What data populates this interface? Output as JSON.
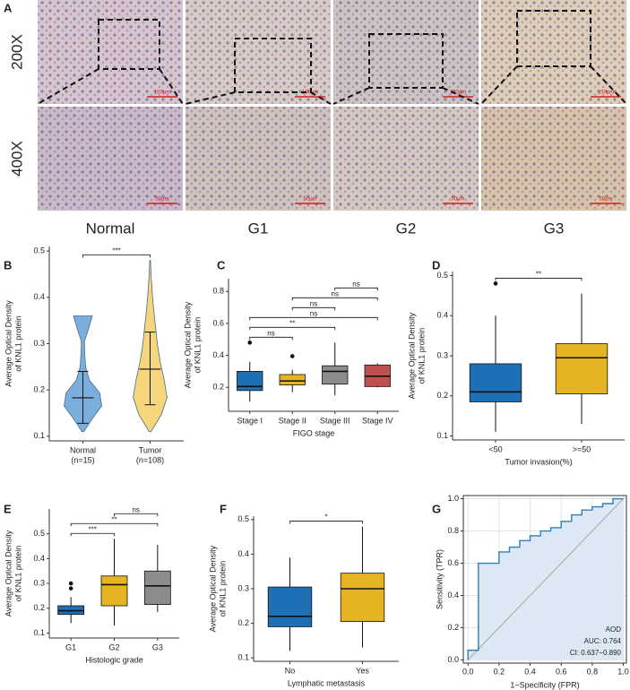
{
  "images": {
    "panel": "A",
    "magnifications": [
      "200X",
      "400X"
    ],
    "groups": [
      "Normal",
      "G1",
      "G2",
      "G3"
    ],
    "scale_bars": [
      "100μm",
      "50μm"
    ]
  },
  "chart_data": [
    {
      "type": "violin",
      "panel": "B",
      "ylabel": [
        "Average Optical Density",
        "of KNL1 protein"
      ],
      "categories": [
        "Normal",
        "Tumor"
      ],
      "category_counts": [
        "(n=15)",
        "(n=108)"
      ],
      "violins": [
        {
          "color": "#7aaedc",
          "min": 0.11,
          "max": 0.36,
          "density": [
            0.05,
            0.5,
            1,
            0.9,
            0.35,
            0.15,
            0.1,
            0.08,
            0.3,
            0.5
          ],
          "mean": 0.183,
          "sd_low": 0.128,
          "sd_high": 0.24
        },
        {
          "color": "#f5d67a",
          "min": 0.11,
          "max": 0.48,
          "density": [
            0.05,
            0.6,
            0.9,
            0.75,
            0.55,
            0.4,
            0.3,
            0.2,
            0.12,
            0.06,
            0.02
          ],
          "mean": 0.245,
          "sd_low": 0.168,
          "sd_high": 0.325
        }
      ],
      "comparisons": [
        {
          "pair": [
            0,
            1
          ],
          "label": "***"
        }
      ],
      "ylim": [
        0.09,
        0.51
      ],
      "yticks": [
        0.1,
        0.2,
        0.3,
        0.4,
        0.5
      ]
    },
    {
      "type": "box",
      "panel": "C",
      "ylabel": [
        "Average Optical Density",
        "of KNL1 protein"
      ],
      "xlabel": "FIGO stage",
      "categories": [
        "Stage I",
        "Stage II",
        "Stage III",
        "Stage IV"
      ],
      "boxes": [
        {
          "color": "#1f6fb5",
          "min": 0.11,
          "q1": 0.18,
          "median": 0.205,
          "q3": 0.3,
          "max": 0.36,
          "outliers": [
            0.48
          ]
        },
        {
          "color": "#e6b422",
          "min": 0.17,
          "q1": 0.215,
          "median": 0.24,
          "q3": 0.28,
          "max": 0.31,
          "outliers": [
            0.395
          ]
        },
        {
          "color": "#8c8c8c",
          "min": 0.15,
          "q1": 0.22,
          "median": 0.3,
          "q3": 0.335,
          "max": 0.48,
          "outliers": []
        },
        {
          "color": "#c0504d",
          "min": 0.2,
          "q1": 0.205,
          "median": 0.27,
          "q3": 0.34,
          "max": 0.35,
          "outliers": []
        }
      ],
      "comparisons": [
        {
          "pair": [
            0,
            1
          ],
          "label": "ns"
        },
        {
          "pair": [
            0,
            2
          ],
          "label": "**"
        },
        {
          "pair": [
            0,
            3
          ],
          "label": "ns"
        },
        {
          "pair": [
            1,
            2
          ],
          "label": "ns"
        },
        {
          "pair": [
            1,
            3
          ],
          "label": "ns"
        },
        {
          "pair": [
            2,
            3
          ],
          "label": "ns"
        }
      ],
      "ylim": [
        0.05,
        0.88
      ],
      "yticks": [
        0.2,
        0.4,
        0.6,
        0.8
      ]
    },
    {
      "type": "box",
      "panel": "D",
      "ylabel": [
        "Average Optical Density",
        "of KNL1 protein"
      ],
      "xlabel": "Tumor invasion(%)",
      "categories": [
        "<50",
        ">=50"
      ],
      "boxes": [
        {
          "color": "#1f6fb5",
          "min": 0.11,
          "q1": 0.185,
          "median": 0.21,
          "q3": 0.28,
          "max": 0.4,
          "outliers": [
            0.48
          ]
        },
        {
          "color": "#e6b422",
          "min": 0.13,
          "q1": 0.205,
          "median": 0.295,
          "q3": 0.33,
          "max": 0.455,
          "outliers": []
        }
      ],
      "comparisons": [
        {
          "pair": [
            0,
            1
          ],
          "label": "**"
        }
      ],
      "ylim": [
        0.09,
        0.51
      ],
      "yticks": [
        0.1,
        0.2,
        0.3,
        0.4,
        0.5
      ]
    },
    {
      "type": "box",
      "panel": "E",
      "ylabel": [
        "Average Optical Density",
        "of KNL1 protein"
      ],
      "xlabel": "Histologic grade",
      "categories": [
        "G1",
        "G2",
        "G3"
      ],
      "boxes": [
        {
          "color": "#1f6fb5",
          "min": 0.14,
          "q1": 0.175,
          "median": 0.19,
          "q3": 0.21,
          "max": 0.245,
          "outliers": [
            0.28,
            0.3
          ]
        },
        {
          "color": "#e6b422",
          "min": 0.13,
          "q1": 0.21,
          "median": 0.295,
          "q3": 0.33,
          "max": 0.48,
          "outliers": []
        },
        {
          "color": "#8c8c8c",
          "min": 0.185,
          "q1": 0.215,
          "median": 0.29,
          "q3": 0.35,
          "max": 0.455,
          "outliers": []
        }
      ],
      "comparisons": [
        {
          "pair": [
            0,
            1
          ],
          "label": "***"
        },
        {
          "pair": [
            0,
            2
          ],
          "label": "**"
        },
        {
          "pair": [
            1,
            2
          ],
          "label": "ns"
        }
      ],
      "ylim": [
        0.08,
        0.6
      ],
      "yticks": [
        0.1,
        0.2,
        0.3,
        0.4,
        0.5
      ]
    },
    {
      "type": "box",
      "panel": "F",
      "ylabel": [
        "Average Optical Density",
        "of KNL1 protein"
      ],
      "xlabel": "Lymphatic metastasis",
      "categories": [
        "No",
        "Yes"
      ],
      "boxes": [
        {
          "color": "#1f6fb5",
          "min": 0.12,
          "q1": 0.19,
          "median": 0.22,
          "q3": 0.305,
          "max": 0.39,
          "outliers": []
        },
        {
          "color": "#e6b422",
          "min": 0.13,
          "q1": 0.205,
          "median": 0.3,
          "q3": 0.345,
          "max": 0.48,
          "outliers": []
        }
      ],
      "comparisons": [
        {
          "pair": [
            0,
            1
          ],
          "label": "*"
        }
      ],
      "ylim": [
        0.09,
        0.51
      ],
      "yticks": [
        0.1,
        0.2,
        0.3,
        0.4,
        0.5
      ]
    },
    {
      "type": "line",
      "panel": "G",
      "ylabel": [
        "Sensitivity (TPR)"
      ],
      "xlabel": "1−Specificity (FPR)",
      "legend": [
        "AOD",
        "AUC: 0.764",
        "CI: 0.637−0.890"
      ],
      "color": "#2f7fc1",
      "fill": "#dce8f4",
      "grid": true,
      "x": [
        0,
        0,
        0.067,
        0.067,
        0.2,
        0.2,
        0.267,
        0.267,
        0.333,
        0.333,
        0.4,
        0.4,
        0.467,
        0.467,
        0.533,
        0.533,
        0.6,
        0.6,
        0.667,
        0.667,
        0.733,
        0.733,
        0.8,
        0.8,
        0.867,
        0.867,
        0.933,
        0.933,
        1
      ],
      "y": [
        0,
        0.06,
        0.06,
        0.6,
        0.6,
        0.67,
        0.67,
        0.7,
        0.7,
        0.74,
        0.74,
        0.77,
        0.77,
        0.8,
        0.8,
        0.82,
        0.82,
        0.86,
        0.86,
        0.9,
        0.9,
        0.93,
        0.93,
        0.95,
        0.95,
        0.97,
        0.97,
        1,
        1
      ],
      "xlim": [
        -0.03,
        1.02
      ],
      "ylim": [
        -0.02,
        1.02
      ],
      "xticks": [
        {
          "value": 0,
          "label": "0.0"
        },
        0.2,
        0.4,
        0.6,
        0.8,
        {
          "value": 1,
          "label": "1.0"
        }
      ],
      "yticks": [
        {
          "value": 0,
          "label": "0.0"
        },
        0.2,
        0.4,
        0.6,
        0.8,
        {
          "value": 1,
          "label": "1.0"
        }
      ]
    }
  ]
}
